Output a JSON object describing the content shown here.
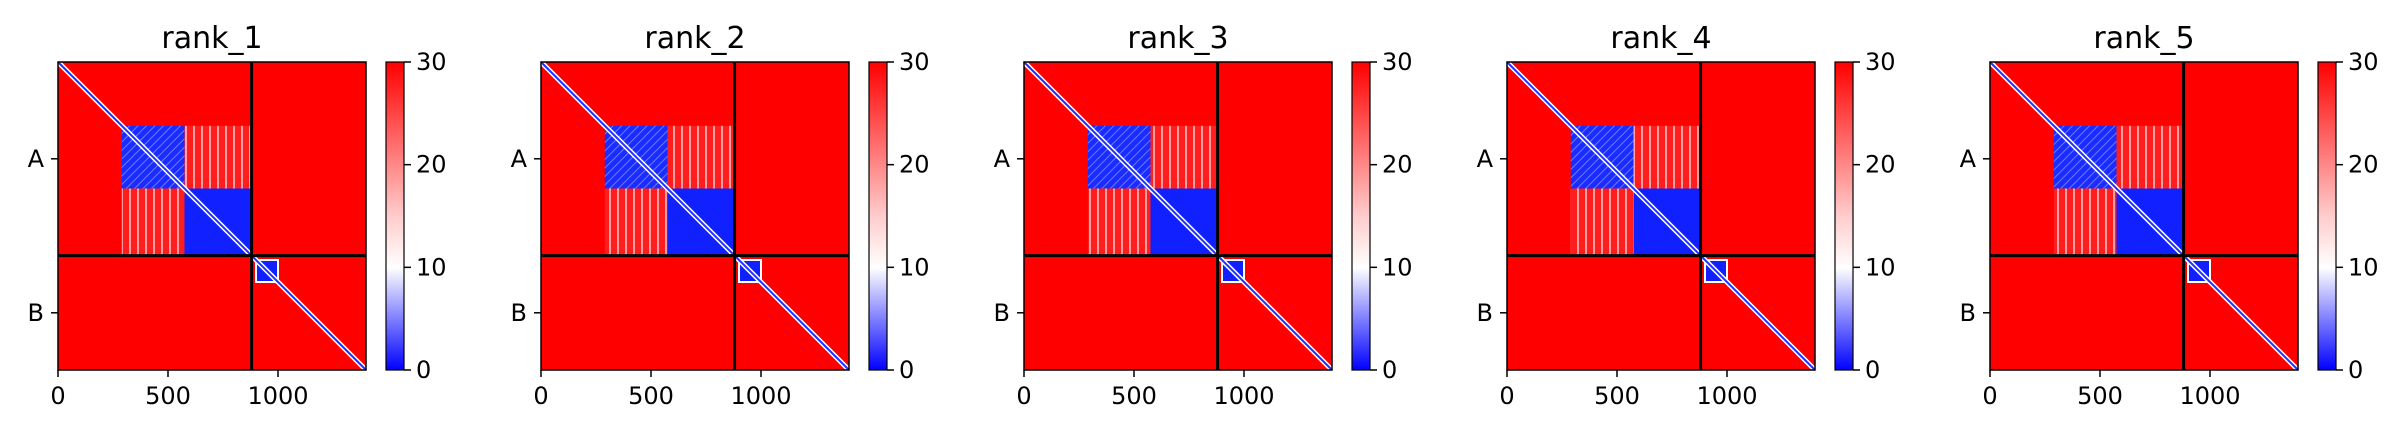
{
  "chart_data": {
    "type": "heatmap",
    "description_hint": "Predicted aligned error matrices for two chains (A, B) across five model ranks",
    "colormap": {
      "low": "#0000ff",
      "mid": "#ffffff",
      "high": "#ff0000"
    },
    "colorbar": {
      "min": 0,
      "max": 30,
      "ticks": [
        0,
        10,
        20,
        30
      ]
    },
    "x_ticks": [
      0,
      500,
      1000
    ],
    "x_range": [
      0,
      1400
    ],
    "chain_labels": [
      "A",
      "B"
    ],
    "chain_boundary": 880,
    "panels": [
      {
        "title": "rank_1"
      },
      {
        "title": "rank_2"
      },
      {
        "title": "rank_3"
      },
      {
        "title": "rank_4"
      },
      {
        "title": "rank_5"
      }
    ]
  }
}
